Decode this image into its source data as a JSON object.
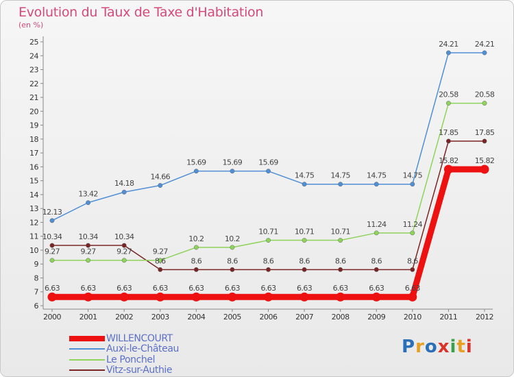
{
  "title": "Evolution du Taux de Taxe d'Habitation",
  "unit": "(en %)",
  "logo": {
    "text": "Proxiti",
    "colors": [
      "#2a6fb8",
      "#e8a023",
      "#2a6fb8",
      "#d9332b",
      "#3aa14b",
      "#e8a023",
      "#d9332b"
    ]
  },
  "chart_data": {
    "type": "line",
    "categories": [
      "2000",
      "2001",
      "2002",
      "2003",
      "2004",
      "2005",
      "2006",
      "2007",
      "2008",
      "2009",
      "2010",
      "2011",
      "2012"
    ],
    "ylim": [
      6,
      25
    ],
    "yticks": [
      "6",
      "7",
      "8",
      "9",
      "10",
      "11",
      "12",
      "13",
      "14",
      "15",
      "16",
      "17",
      "18",
      "19",
      "20",
      "21",
      "22",
      "23",
      "24",
      "25"
    ],
    "grid": "none",
    "legend_position": "bottom-left",
    "series": [
      {
        "name": "WILLENCOURT",
        "color": "#ee1111",
        "values": [
          6.63,
          6.63,
          6.63,
          6.63,
          6.63,
          6.63,
          6.63,
          6.63,
          6.63,
          6.63,
          6.63,
          15.82,
          15.82
        ],
        "labels": [
          "6.63",
          "6.63",
          "6.63",
          "6.63",
          "6.63",
          "6.63",
          "6.63",
          "6.63",
          "6.63",
          "6.63",
          "6.63",
          "15.82",
          "15.82"
        ]
      },
      {
        "name": "Auxi-le-Château",
        "color": "#4f8fd6",
        "values": [
          12.13,
          13.42,
          14.18,
          14.66,
          15.69,
          15.69,
          15.69,
          14.75,
          14.75,
          14.75,
          14.75,
          24.21,
          24.21
        ],
        "labels": [
          "12.13",
          "13.42",
          "14.18",
          "14.66",
          "15.69",
          "15.69",
          "15.69",
          "14.75",
          "14.75",
          "14.75",
          "14.75",
          "24.21",
          "24.21"
        ]
      },
      {
        "name": "Le Ponchel",
        "color": "#8ed35a",
        "values": [
          9.27,
          9.27,
          9.27,
          9.27,
          10.2,
          10.2,
          10.71,
          10.71,
          10.71,
          11.24,
          11.24,
          20.58,
          20.58
        ],
        "labels": [
          "9.27",
          "9.27",
          "9.27",
          "9.27",
          "10.2",
          "10.2",
          "10.71",
          "10.71",
          "10.71",
          "11.24",
          "11.24",
          "20.58",
          "20.58"
        ]
      },
      {
        "name": "Vitz-sur-Authie",
        "color": "#7a2424",
        "values": [
          10.34,
          10.34,
          10.34,
          8.6,
          8.6,
          8.6,
          8.6,
          8.6,
          8.6,
          8.6,
          8.6,
          17.85,
          17.85
        ],
        "labels": [
          "10.34",
          "10.34",
          "10.34",
          "8.6",
          "8.6",
          "8.6",
          "8.6",
          "8.6",
          "8.6",
          "8.6",
          "8.6",
          "17.85",
          "17.85"
        ]
      }
    ]
  }
}
